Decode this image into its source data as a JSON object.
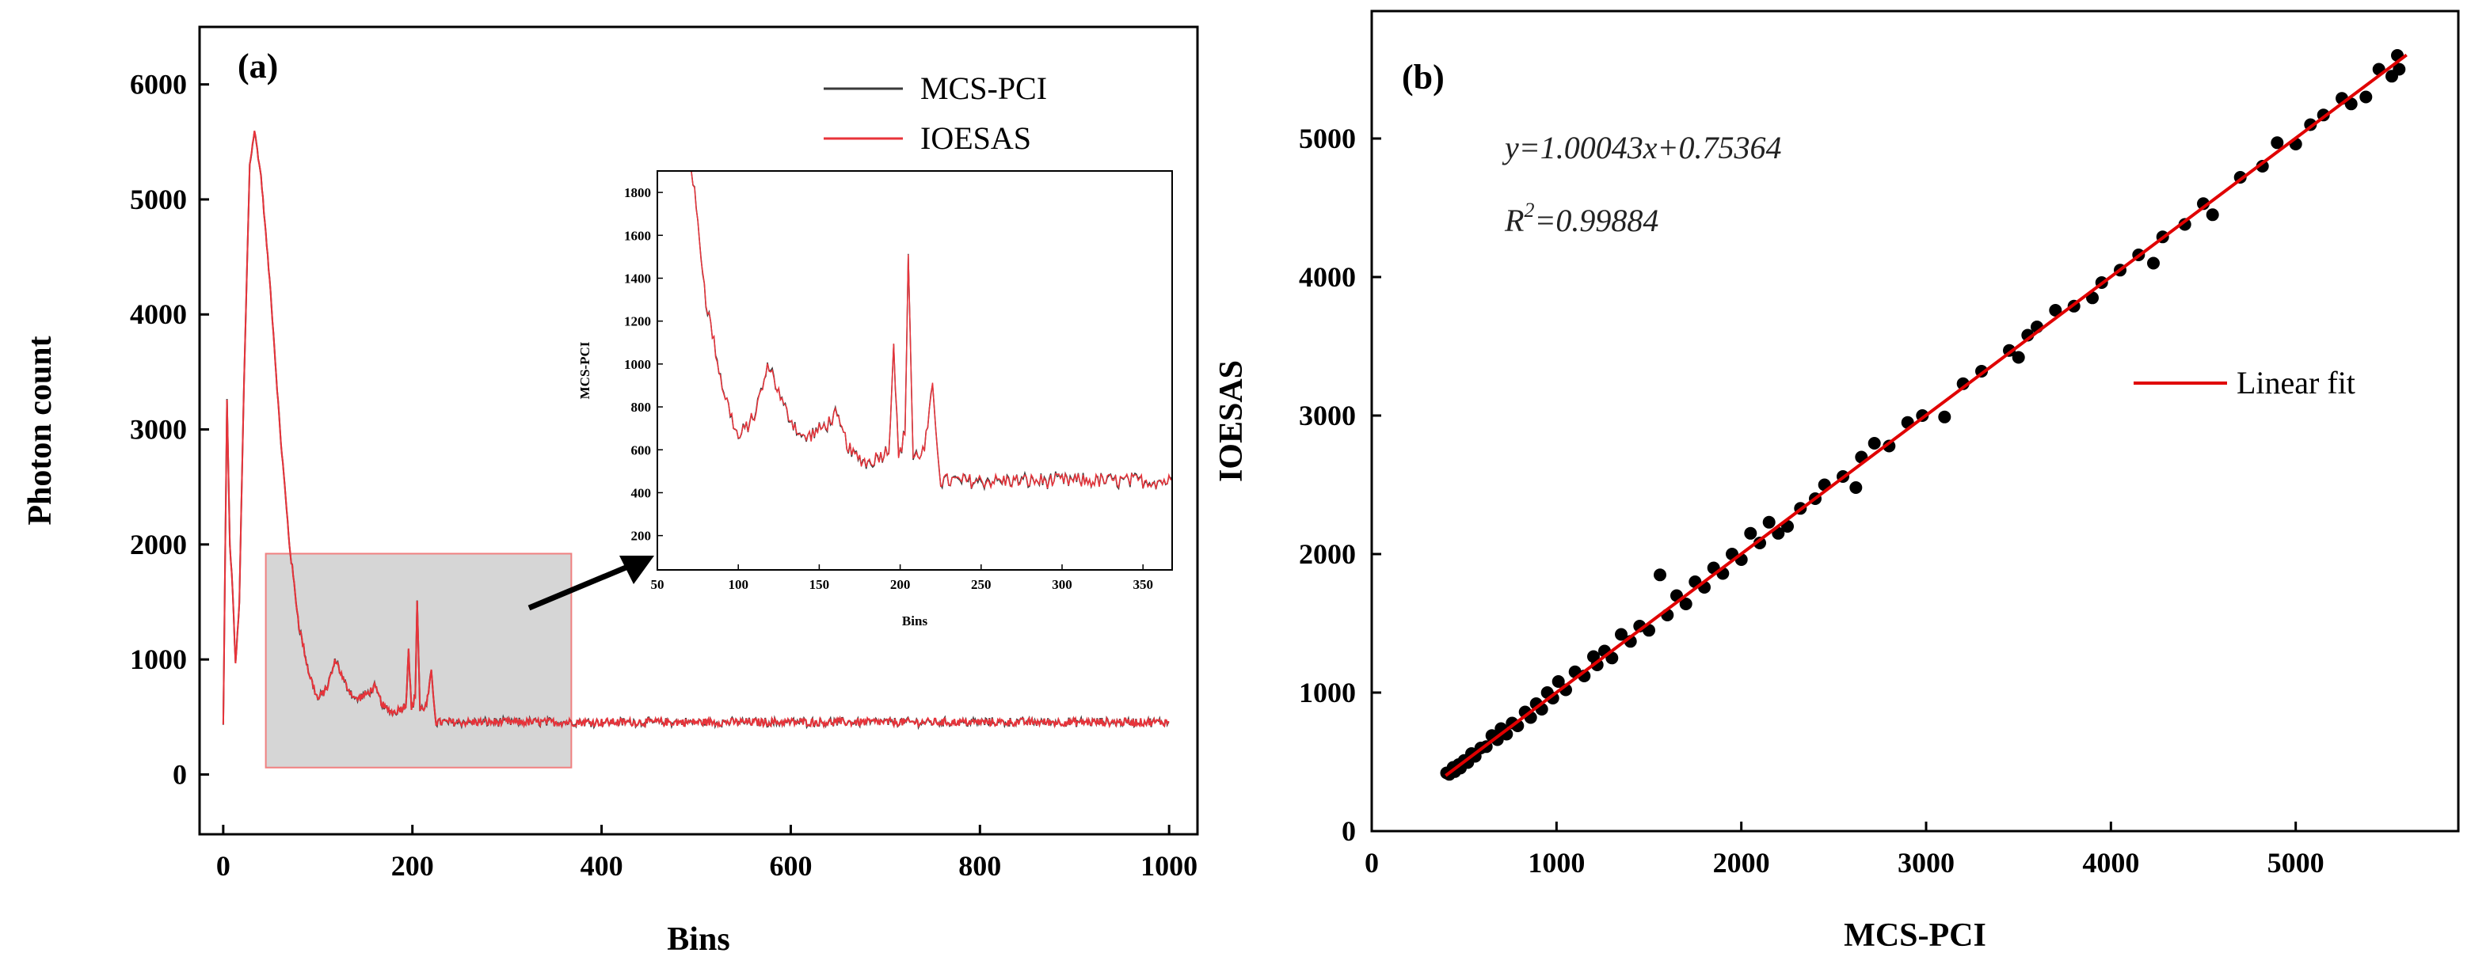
{
  "colors": {
    "mcs": "#3a3a3a",
    "ioesas": "#e8333a",
    "fit": "#e00000",
    "points": "#000000",
    "zoom_fill": "#d6d6d6",
    "zoom_edge": "#f08080"
  },
  "chart_data": [
    {
      "id": "a",
      "type": "line",
      "panel_label": "(a)",
      "xlabel": "Bins",
      "ylabel": "Photon count",
      "xlim": [
        -25,
        1030
      ],
      "ylim": [
        -520,
        6500
      ],
      "xticks": [
        0,
        200,
        400,
        600,
        800,
        1000
      ],
      "yticks": [
        0,
        1000,
        2000,
        3000,
        4000,
        5000,
        6000
      ],
      "series": [
        {
          "name": "MCS-PCI",
          "color": "#3a3a3a"
        },
        {
          "name": "IOESAS",
          "color": "#e8333a"
        }
      ],
      "profile": {
        "baseline": 455,
        "keypoints": [
          [
            0,
            430
          ],
          [
            4,
            3250
          ],
          [
            7,
            2000
          ],
          [
            10,
            1600
          ],
          [
            13,
            950
          ],
          [
            17,
            1500
          ],
          [
            22,
            3400
          ],
          [
            28,
            5300
          ],
          [
            33,
            5600
          ],
          [
            40,
            5200
          ],
          [
            50,
            4200
          ],
          [
            60,
            3000
          ],
          [
            70,
            2000
          ],
          [
            80,
            1300
          ],
          [
            90,
            900
          ],
          [
            100,
            650
          ],
          [
            110,
            760
          ],
          [
            119,
            1000
          ],
          [
            128,
            800
          ],
          [
            140,
            650
          ],
          [
            152,
            700
          ],
          [
            160,
            760
          ],
          [
            170,
            580
          ],
          [
            180,
            540
          ],
          [
            193,
            600
          ],
          [
            196,
            1100
          ],
          [
            199,
            560
          ],
          [
            203,
            680
          ],
          [
            205,
            1520
          ],
          [
            208,
            560
          ],
          [
            215,
            600
          ],
          [
            220,
            880
          ],
          [
            225,
            450
          ]
        ],
        "spikes": [
          [
            195,
            1100
          ],
          [
            205,
            1520
          ],
          [
            220,
            880
          ]
        ]
      },
      "zoom_box": {
        "x": [
          45,
          368
        ],
        "y": [
          60,
          1920
        ]
      },
      "inset": {
        "xlabel": "Bins",
        "ylabel": "MCS-PCI",
        "xlim": [
          50,
          368
        ],
        "ylim": [
          40,
          1900
        ],
        "xticks": [
          50,
          100,
          150,
          200,
          250,
          300,
          350
        ],
        "yticks": [
          200,
          400,
          600,
          800,
          1000,
          1200,
          1400,
          1600,
          1800
        ]
      }
    },
    {
      "id": "b",
      "type": "scatter",
      "panel_label": "(b)",
      "xlabel": "MCS-PCI",
      "ylabel": "IOESAS",
      "xlim": [
        0,
        5880
      ],
      "ylim": [
        0,
        5920
      ],
      "xticks": [
        0,
        1000,
        2000,
        3000,
        4000,
        5000
      ],
      "yticks": [
        0,
        1000,
        2000,
        3000,
        4000,
        5000
      ],
      "fit": {
        "name": "Linear fit",
        "slope": 1.00043,
        "intercept": 0.75364,
        "x_range": [
          400,
          5600
        ]
      },
      "equation": {
        "lhs": "y=1.00043x+0.75364",
        "r_label": "R",
        "r_sup": "2",
        "r_value": "=0.99884"
      },
      "points": [
        [
          405,
          420
        ],
        [
          420,
          410
        ],
        [
          440,
          460
        ],
        [
          450,
          430
        ],
        [
          470,
          480
        ],
        [
          480,
          455
        ],
        [
          500,
          510
        ],
        [
          520,
          495
        ],
        [
          540,
          560
        ],
        [
          560,
          540
        ],
        [
          590,
          600
        ],
        [
          620,
          610
        ],
        [
          650,
          690
        ],
        [
          680,
          660
        ],
        [
          700,
          740
        ],
        [
          730,
          700
        ],
        [
          760,
          780
        ],
        [
          790,
          760
        ],
        [
          830,
          860
        ],
        [
          860,
          820
        ],
        [
          890,
          920
        ],
        [
          920,
          880
        ],
        [
          950,
          1000
        ],
        [
          980,
          960
        ],
        [
          1010,
          1080
        ],
        [
          1050,
          1020
        ],
        [
          1100,
          1150
        ],
        [
          1150,
          1120
        ],
        [
          1200,
          1260
        ],
        [
          1220,
          1200
        ],
        [
          1260,
          1300
        ],
        [
          1300,
          1250
        ],
        [
          1350,
          1420
        ],
        [
          1400,
          1370
        ],
        [
          1450,
          1480
        ],
        [
          1500,
          1450
        ],
        [
          1560,
          1850
        ],
        [
          1600,
          1560
        ],
        [
          1650,
          1700
        ],
        [
          1700,
          1640
        ],
        [
          1750,
          1800
        ],
        [
          1800,
          1760
        ],
        [
          1850,
          1900
        ],
        [
          1900,
          1860
        ],
        [
          1950,
          2000
        ],
        [
          2000,
          1960
        ],
        [
          2050,
          2150
        ],
        [
          2100,
          2080
        ],
        [
          2150,
          2230
        ],
        [
          2200,
          2150
        ],
        [
          2250,
          2200
        ],
        [
          2320,
          2330
        ],
        [
          2400,
          2400
        ],
        [
          2450,
          2500
        ],
        [
          2550,
          2560
        ],
        [
          2620,
          2480
        ],
        [
          2650,
          2700
        ],
        [
          2720,
          2800
        ],
        [
          2800,
          2780
        ],
        [
          2900,
          2950
        ],
        [
          2980,
          3000
        ],
        [
          3100,
          2990
        ],
        [
          3200,
          3230
        ],
        [
          3300,
          3320
        ],
        [
          3450,
          3470
        ],
        [
          3500,
          3420
        ],
        [
          3550,
          3580
        ],
        [
          3600,
          3640
        ],
        [
          3700,
          3760
        ],
        [
          3800,
          3790
        ],
        [
          3900,
          3850
        ],
        [
          3950,
          3960
        ],
        [
          4050,
          4050
        ],
        [
          4150,
          4160
        ],
        [
          4230,
          4100
        ],
        [
          4280,
          4290
        ],
        [
          4400,
          4380
        ],
        [
          4500,
          4530
        ],
        [
          4550,
          4450
        ],
        [
          4700,
          4720
        ],
        [
          4820,
          4800
        ],
        [
          4900,
          4970
        ],
        [
          5000,
          4960
        ],
        [
          5080,
          5100
        ],
        [
          5150,
          5170
        ],
        [
          5250,
          5290
        ],
        [
          5300,
          5250
        ],
        [
          5380,
          5300
        ],
        [
          5450,
          5500
        ],
        [
          5520,
          5450
        ],
        [
          5550,
          5600
        ],
        [
          5560,
          5500
        ]
      ],
      "legend": "Linear fit"
    }
  ]
}
